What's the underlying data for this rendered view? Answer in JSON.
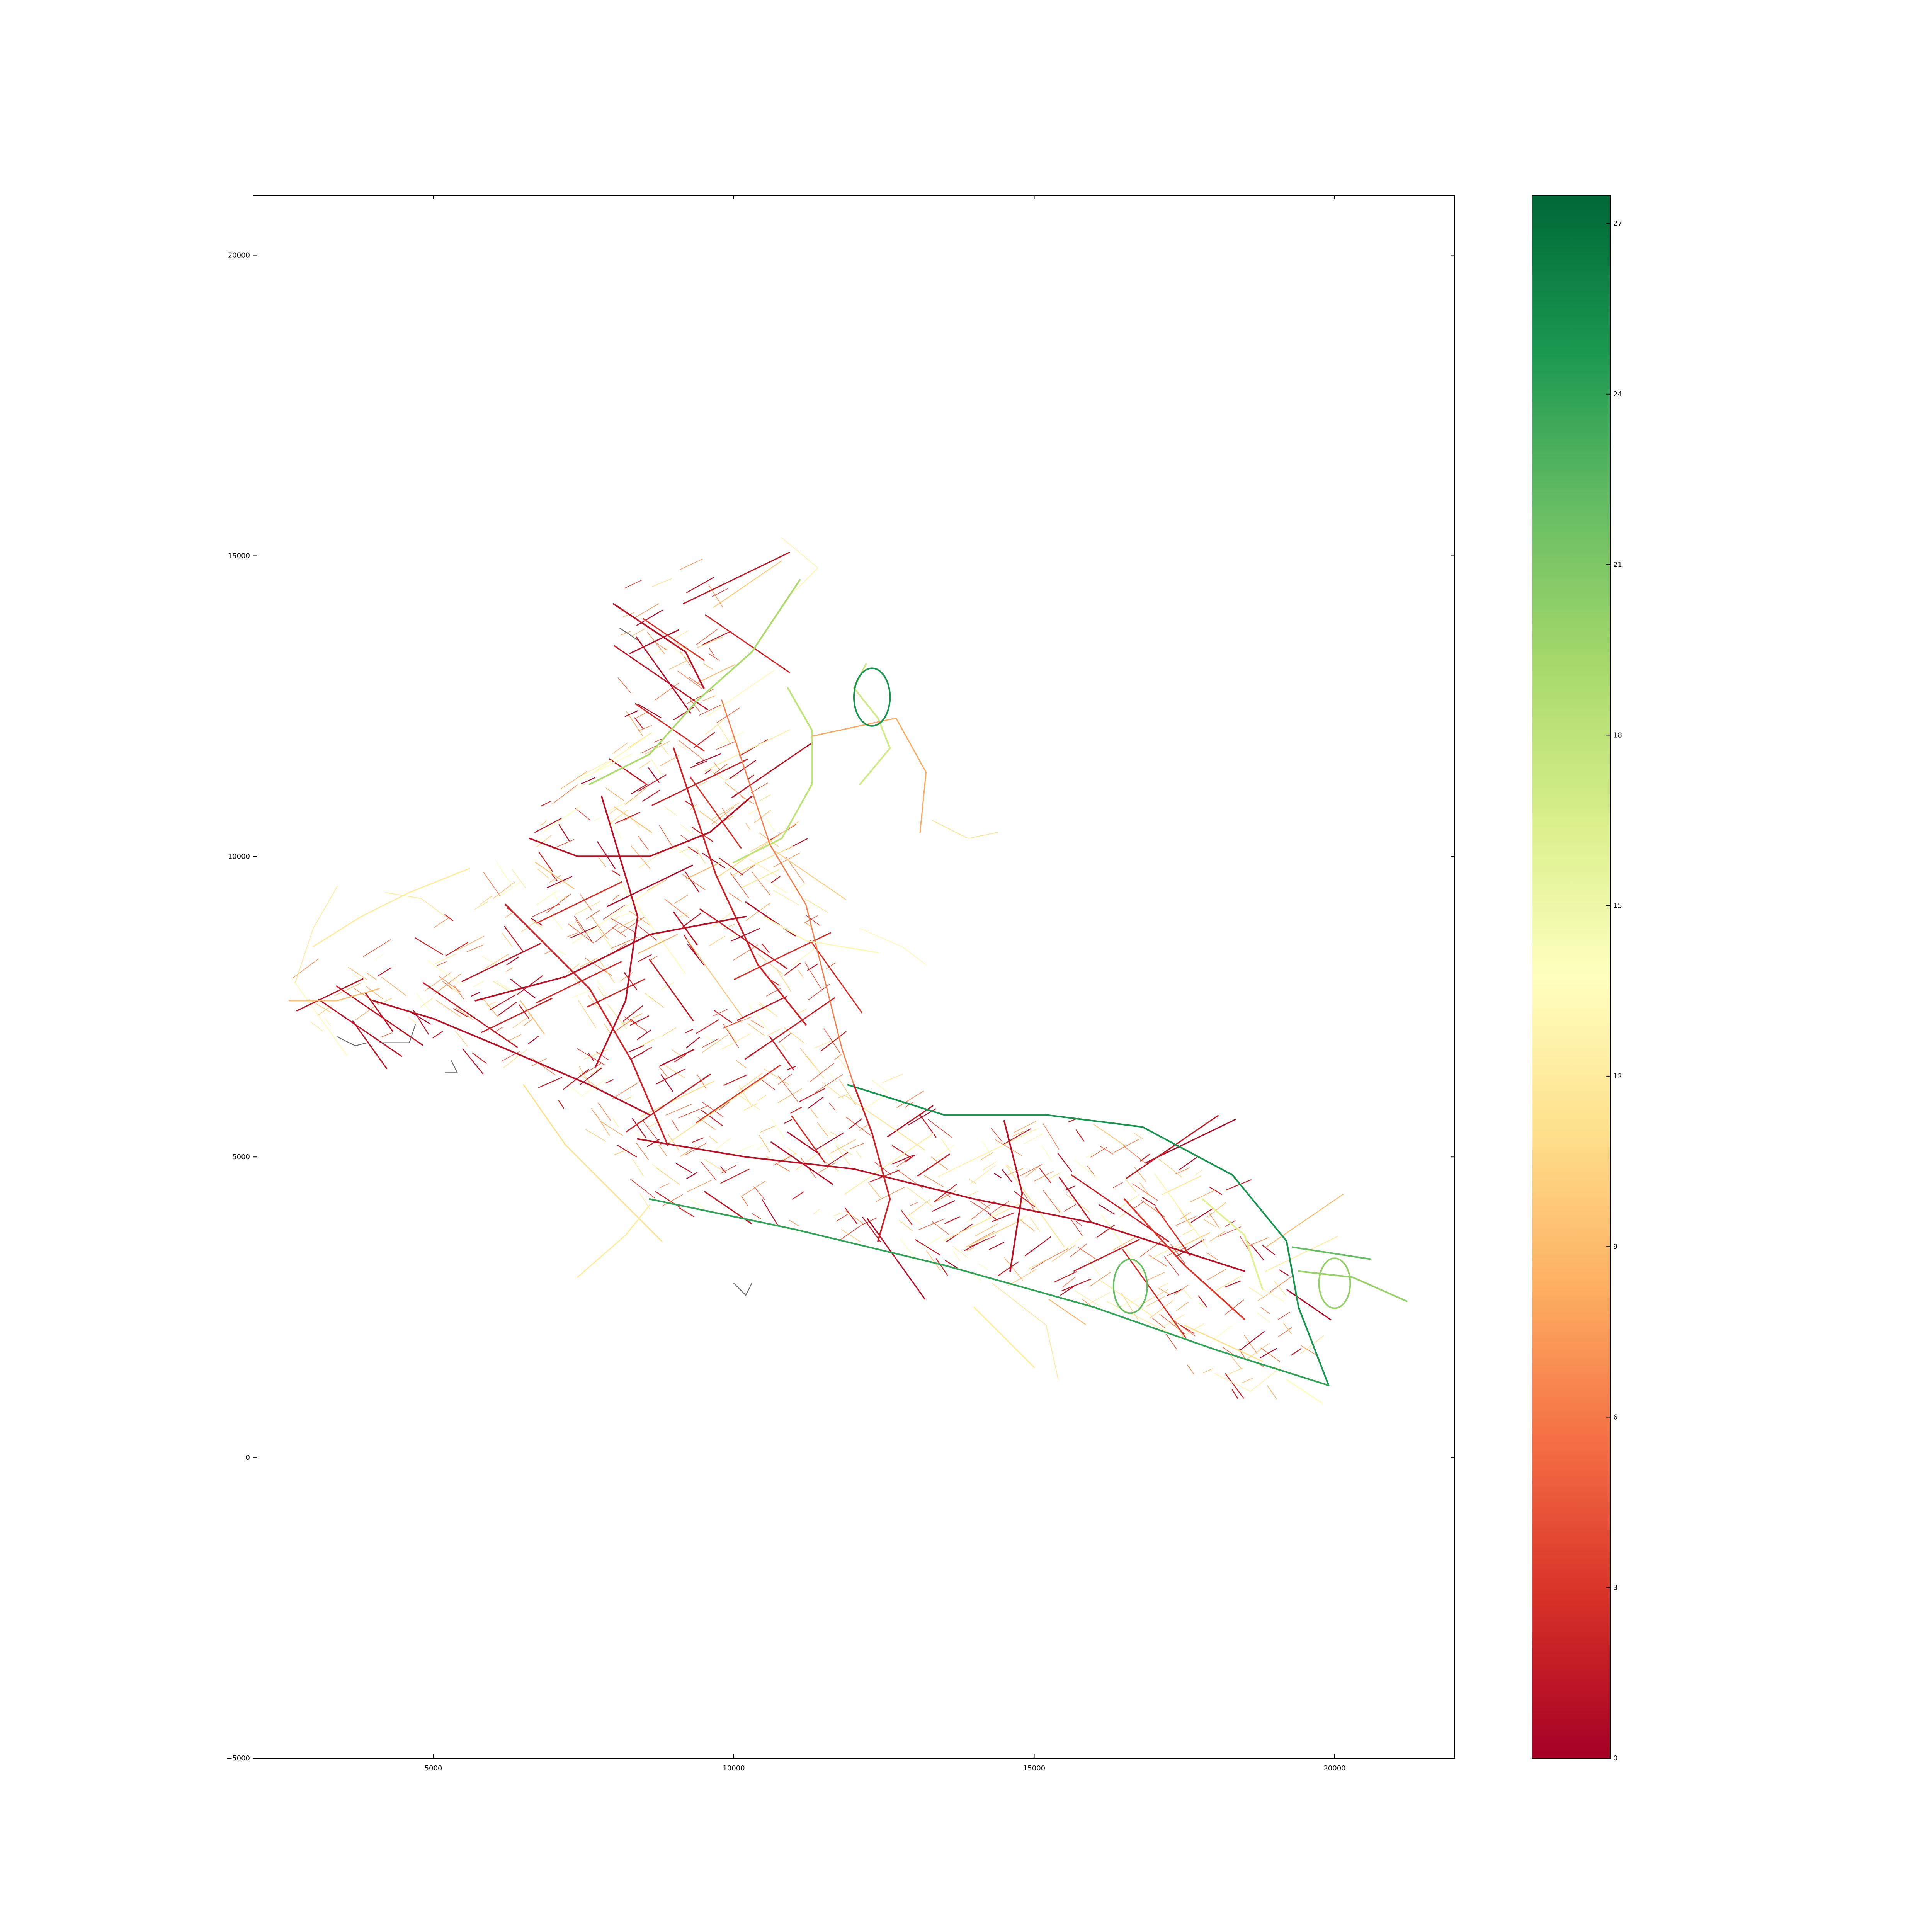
{
  "figure": {
    "type": "map",
    "xlim": [
      2000,
      22000
    ],
    "ylim": [
      -5000,
      21000
    ],
    "x_ticks": [
      {
        "value": 5000,
        "label": "5000"
      },
      {
        "value": 10000,
        "label": "10000"
      },
      {
        "value": 15000,
        "label": "15000"
      },
      {
        "value": 20000,
        "label": "20000"
      }
    ],
    "y_ticks": [
      {
        "value": -5000,
        "label": "−5000"
      },
      {
        "value": 0,
        "label": "0"
      },
      {
        "value": 5000,
        "label": "5000"
      },
      {
        "value": 10000,
        "label": "10000"
      },
      {
        "value": 15000,
        "label": "15000"
      },
      {
        "value": 20000,
        "label": "20000"
      }
    ]
  },
  "colorbar": {
    "colormap": "RdYlGn",
    "range": [
      0,
      27.5
    ],
    "stops": [
      "#a50026",
      "#d73027",
      "#f46d43",
      "#fdae61",
      "#fee08b",
      "#ffffbf",
      "#d9ef8b",
      "#a6d96a",
      "#66bd63",
      "#1a9850",
      "#006837"
    ],
    "ticks": [
      {
        "value": 0,
        "label": "0"
      },
      {
        "value": 3,
        "label": "3"
      },
      {
        "value": 6,
        "label": "6"
      },
      {
        "value": 9,
        "label": "9"
      },
      {
        "value": 12,
        "label": "12"
      },
      {
        "value": 15,
        "label": "15"
      },
      {
        "value": 18,
        "label": "18"
      },
      {
        "value": 21,
        "label": "21"
      },
      {
        "value": 24,
        "label": "24"
      },
      {
        "value": 27,
        "label": "27"
      }
    ]
  },
  "map_data": {
    "note_color_scale": "edge color encodes value 0-27 via RdYlGn",
    "major_roads": [
      {
        "value": 25,
        "points": [
          [
            11900,
            6200
          ],
          [
            13500,
            5700
          ],
          [
            15200,
            5700
          ],
          [
            16800,
            5500
          ],
          [
            18300,
            4700
          ],
          [
            19200,
            3600
          ],
          [
            19400,
            2500
          ],
          [
            19900,
            1200
          ]
        ]
      },
      {
        "value": 24,
        "points": [
          [
            8600,
            4300
          ],
          [
            11000,
            3800
          ],
          [
            13500,
            3200
          ],
          [
            16000,
            2500
          ],
          [
            18000,
            1800
          ],
          [
            19900,
            1200
          ]
        ]
      },
      {
        "value": 22,
        "points": [
          [
            19300,
            3500
          ],
          [
            20600,
            3300
          ]
        ]
      },
      {
        "value": 20,
        "points": [
          [
            19400,
            3100
          ],
          [
            20300,
            3000
          ],
          [
            21200,
            2600
          ]
        ]
      },
      {
        "value": 19,
        "points": [
          [
            11100,
            14600
          ],
          [
            10300,
            13400
          ],
          [
            9400,
            12600
          ],
          [
            8600,
            11700
          ],
          [
            7600,
            11200
          ]
        ]
      },
      {
        "value": 18,
        "points": [
          [
            10900,
            12800
          ],
          [
            11300,
            12100
          ],
          [
            11300,
            11200
          ],
          [
            10800,
            10300
          ],
          [
            10000,
            9900
          ]
        ]
      },
      {
        "value": 17,
        "points": [
          [
            12200,
            13200
          ],
          [
            12000,
            12800
          ],
          [
            12400,
            12300
          ],
          [
            12600,
            11800
          ],
          [
            12100,
            11200
          ]
        ]
      },
      {
        "value": 6,
        "points": [
          [
            9800,
            12600
          ],
          [
            10600,
            10200
          ],
          [
            11200,
            9200
          ],
          [
            11800,
            6800
          ],
          [
            12000,
            6200
          ]
        ]
      },
      {
        "value": 1,
        "points": [
          [
            8000,
            14200
          ],
          [
            9200,
            13400
          ],
          [
            9500,
            12800
          ]
        ]
      },
      {
        "value": 1,
        "points": [
          [
            6600,
            10300
          ],
          [
            7400,
            10000
          ],
          [
            8600,
            10000
          ],
          [
            9600,
            10400
          ],
          [
            10300,
            11000
          ]
        ]
      },
      {
        "value": 1,
        "points": [
          [
            5700,
            7600
          ],
          [
            7200,
            8000
          ],
          [
            8600,
            8700
          ],
          [
            10200,
            9000
          ]
        ]
      },
      {
        "value": 2,
        "points": [
          [
            6200,
            9200
          ],
          [
            7600,
            7800
          ],
          [
            8300,
            6600
          ],
          [
            8900,
            5200
          ]
        ]
      },
      {
        "value": 1,
        "points": [
          [
            7800,
            11000
          ],
          [
            8400,
            9000
          ],
          [
            8200,
            7600
          ],
          [
            7700,
            6500
          ]
        ]
      },
      {
        "value": 2,
        "points": [
          [
            9000,
            11800
          ],
          [
            9700,
            9700
          ],
          [
            10400,
            8200
          ],
          [
            11200,
            7200
          ]
        ]
      },
      {
        "value": 1,
        "points": [
          [
            8400,
            5300
          ],
          [
            10200,
            5000
          ],
          [
            12000,
            4800
          ],
          [
            14000,
            4300
          ],
          [
            16000,
            3900
          ],
          [
            18500,
            3100
          ]
        ]
      },
      {
        "value": 2,
        "points": [
          [
            12000,
            6200
          ],
          [
            12300,
            5400
          ],
          [
            12600,
            4300
          ],
          [
            12400,
            3600
          ]
        ]
      },
      {
        "value": 1,
        "points": [
          [
            14500,
            5600
          ],
          [
            14800,
            4400
          ],
          [
            14600,
            3100
          ]
        ]
      },
      {
        "value": 3,
        "points": [
          [
            16500,
            4300
          ],
          [
            17500,
            3200
          ],
          [
            18500,
            2300
          ]
        ]
      },
      {
        "value": 1,
        "points": [
          [
            4000,
            7600
          ],
          [
            5000,
            7300
          ],
          [
            6200,
            6800
          ],
          [
            7600,
            6200
          ],
          [
            8600,
            5700
          ]
        ]
      },
      {
        "value": 9,
        "points": [
          [
            2600,
            7600
          ],
          [
            3400,
            7600
          ],
          [
            4100,
            7800
          ]
        ]
      },
      {
        "value": 12,
        "points": [
          [
            3000,
            8500
          ],
          [
            3800,
            9000
          ],
          [
            4600,
            9400
          ],
          [
            5600,
            9800
          ]
        ]
      },
      {
        "value": 11,
        "points": [
          [
            6500,
            6200
          ],
          [
            7200,
            5200
          ],
          [
            8000,
            4400
          ],
          [
            8800,
            3600
          ]
        ]
      },
      {
        "value": 12,
        "points": [
          [
            7400,
            3000
          ],
          [
            8200,
            3700
          ],
          [
            8600,
            4200
          ]
        ]
      },
      {
        "value": 13,
        "points": [
          [
            10500,
            9000
          ],
          [
            11200,
            8600
          ],
          [
            12400,
            8400
          ]
        ]
      },
      {
        "value": 12,
        "points": [
          [
            14000,
            2500
          ],
          [
            15000,
            1500
          ]
        ]
      },
      {
        "value": 11,
        "points": [
          [
            17500,
            2200
          ],
          [
            18800,
            1600
          ]
        ]
      },
      {
        "value": 14,
        "points": [
          [
            19200,
            1300
          ],
          [
            19800,
            900
          ]
        ]
      },
      {
        "value": 16,
        "points": [
          [
            17800,
            4300
          ],
          [
            18500,
            3700
          ],
          [
            18800,
            2800
          ]
        ]
      },
      {
        "value": 8,
        "points": [
          [
            11300,
            12000
          ],
          [
            12700,
            12300
          ],
          [
            13200,
            11400
          ],
          [
            13100,
            10400
          ]
        ]
      }
    ],
    "loops": [
      {
        "value": 25,
        "cx": 12300,
        "cy": 12650,
        "r": 300
      },
      {
        "value": 22,
        "cx": 16600,
        "cy": 2850,
        "r": 280
      },
      {
        "value": 20,
        "cx": 20000,
        "cy": 2900,
        "r": 260
      }
    ]
  }
}
